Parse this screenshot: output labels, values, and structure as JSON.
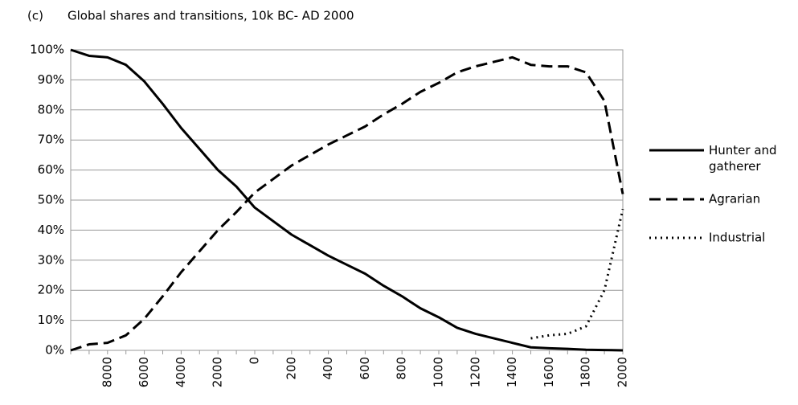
{
  "chart_data": {
    "type": "line",
    "panel": "(c)",
    "title": "Global shares and transitions, 10k BC- AD 2000",
    "categories": [
      null,
      null,
      "8000",
      null,
      "6000",
      null,
      "4000",
      null,
      "2000",
      null,
      "0",
      null,
      "200",
      null,
      "400",
      null,
      "600",
      null,
      "800",
      null,
      "1000",
      null,
      "1200",
      null,
      "1400",
      null,
      "1600",
      null,
      "1800",
      null,
      "2000"
    ],
    "ylim": [
      0,
      100
    ],
    "yticks": [
      {
        "value": 0,
        "label": "0%"
      },
      {
        "value": 10,
        "label": "10%"
      },
      {
        "value": 20,
        "label": "20%"
      },
      {
        "value": 30,
        "label": "30%"
      },
      {
        "value": 40,
        "label": "40%"
      },
      {
        "value": 50,
        "label": "50%"
      },
      {
        "value": 60,
        "label": "60%"
      },
      {
        "value": 70,
        "label": "70%"
      },
      {
        "value": 80,
        "label": "80%"
      },
      {
        "value": 90,
        "label": "90%"
      },
      {
        "value": 100,
        "label": "100%"
      }
    ],
    "grid": true,
    "legend": "right",
    "series": [
      {
        "name": "Hunter and gatherer",
        "color": "#000000",
        "dash": "solid",
        "values": [
          100,
          98,
          97.5,
          95,
          89.5,
          82,
          74,
          67,
          60,
          54.5,
          47.5,
          43,
          38.5,
          35,
          31.5,
          28.5,
          25.5,
          21.5,
          18,
          14,
          11,
          7.5,
          5.5,
          4,
          2.5,
          1,
          0.7,
          0.5,
          0.2,
          0.1,
          0
        ]
      },
      {
        "name": "Agrarian",
        "color": "#000000",
        "dash": "dashed",
        "values": [
          0,
          2,
          2.5,
          5,
          10.5,
          18,
          26,
          33,
          40,
          46,
          52.5,
          57,
          61.5,
          65,
          68.5,
          71.5,
          74.5,
          78.5,
          82,
          86,
          89,
          92.5,
          94.5,
          96,
          97.5,
          95,
          94.5,
          94.5,
          92.5,
          83,
          52
        ]
      },
      {
        "name": "Industrial",
        "color": "#000000",
        "dash": "dotted",
        "values": [
          null,
          null,
          null,
          null,
          null,
          null,
          null,
          null,
          null,
          null,
          null,
          null,
          null,
          null,
          null,
          null,
          null,
          null,
          null,
          null,
          null,
          null,
          null,
          null,
          null,
          4,
          5,
          5.5,
          8,
          20,
          47
        ]
      }
    ]
  }
}
